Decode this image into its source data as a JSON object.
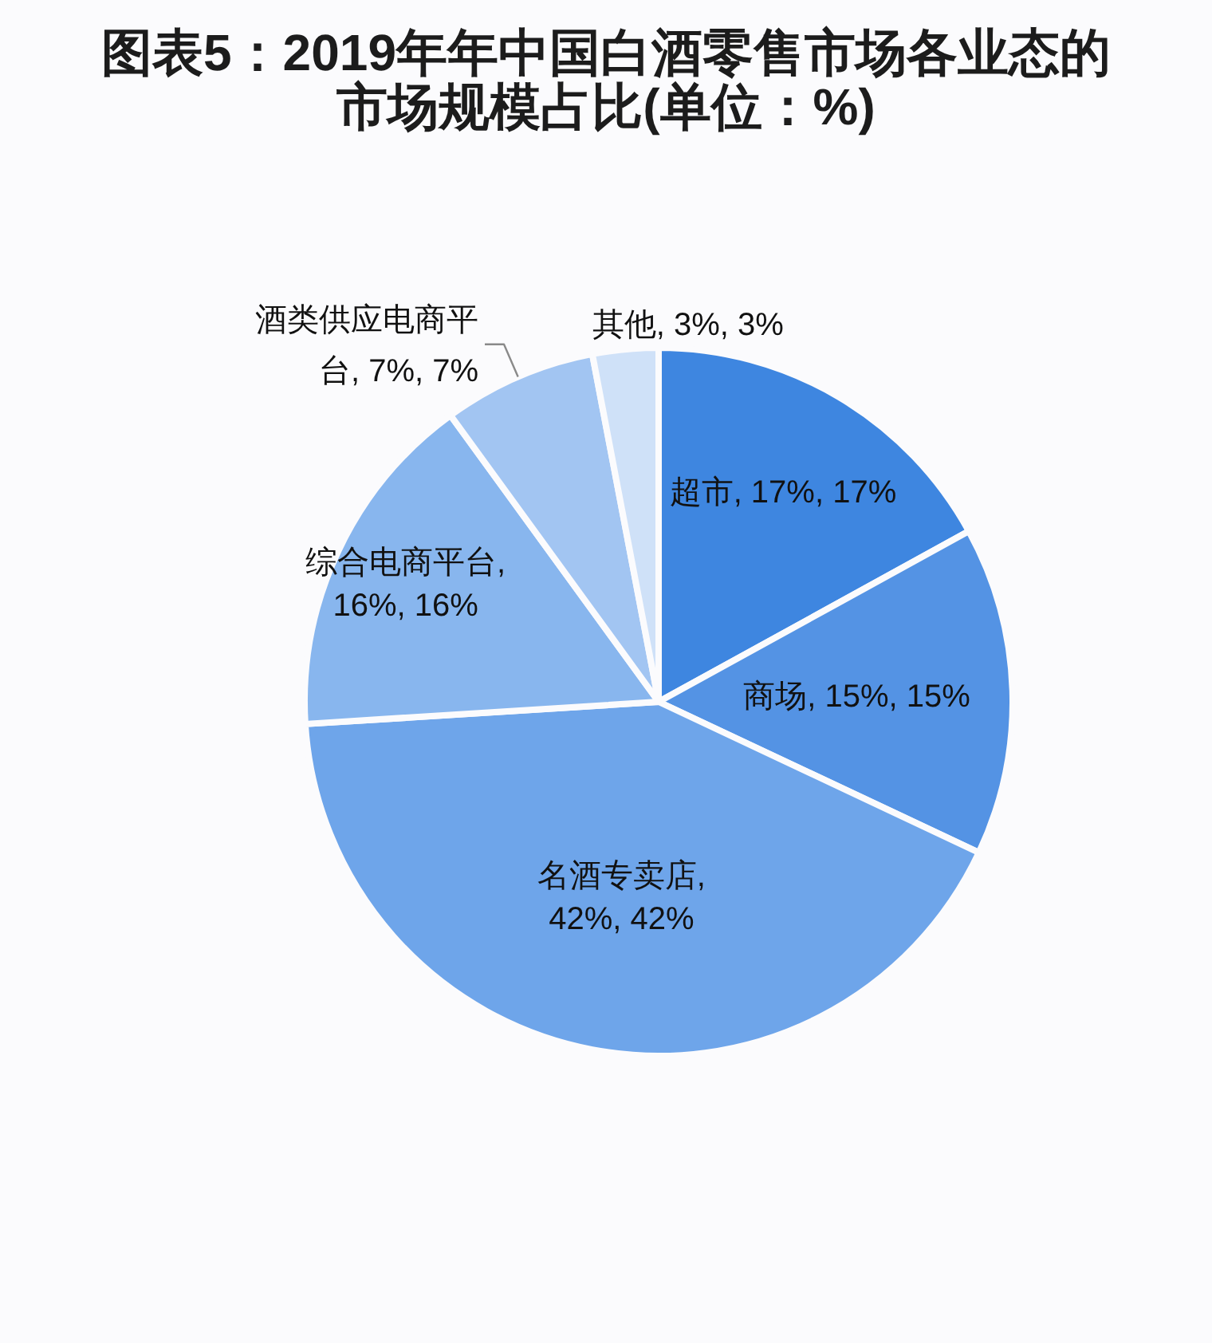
{
  "chart_data": {
    "type": "pie",
    "title": "图表5：2019年年中国白酒零售市场各业态的市场规模占比(单位：%)",
    "categories": [
      "超市",
      "商场",
      "名酒专卖店",
      "综合电商平台",
      "酒类供应电商平台",
      "其他"
    ],
    "values": [
      17,
      15,
      42,
      16,
      7,
      3
    ],
    "colors": [
      "#3e86e0",
      "#5493e4",
      "#6ea5ea",
      "#88b6ee",
      "#a2c5f2",
      "#cfe1f8"
    ],
    "value_labels": [
      ", 17%, 17%",
      ", 15%, 15%",
      ", 42%, 42%",
      ", 16%, 16%",
      ", 7%, 7%",
      ", 3%, 3%"
    ]
  }
}
